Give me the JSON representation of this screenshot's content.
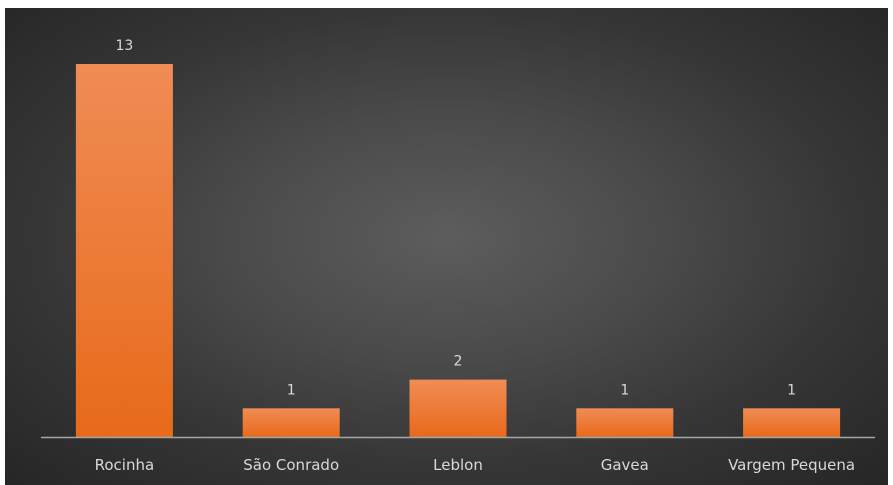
{
  "chart_data": {
    "type": "bar",
    "title": "",
    "xlabel": "",
    "ylabel": "",
    "categories": [
      "Rocinha",
      "São Conrado",
      "Leblon",
      "Gavea",
      "Vargem Pequena"
    ],
    "values": [
      13,
      1,
      2,
      1,
      1
    ],
    "ylim": [
      0,
      13
    ],
    "grid": false,
    "legend": "none",
    "data_labels": true,
    "colors": {
      "bar_top": "#f08c55",
      "bar_bottom": "#e86a1a",
      "axis": "#a6a6a6",
      "label_text": "#d9d9d9",
      "background_center": "#5d5d5d",
      "background_edge": "#262626"
    }
  }
}
